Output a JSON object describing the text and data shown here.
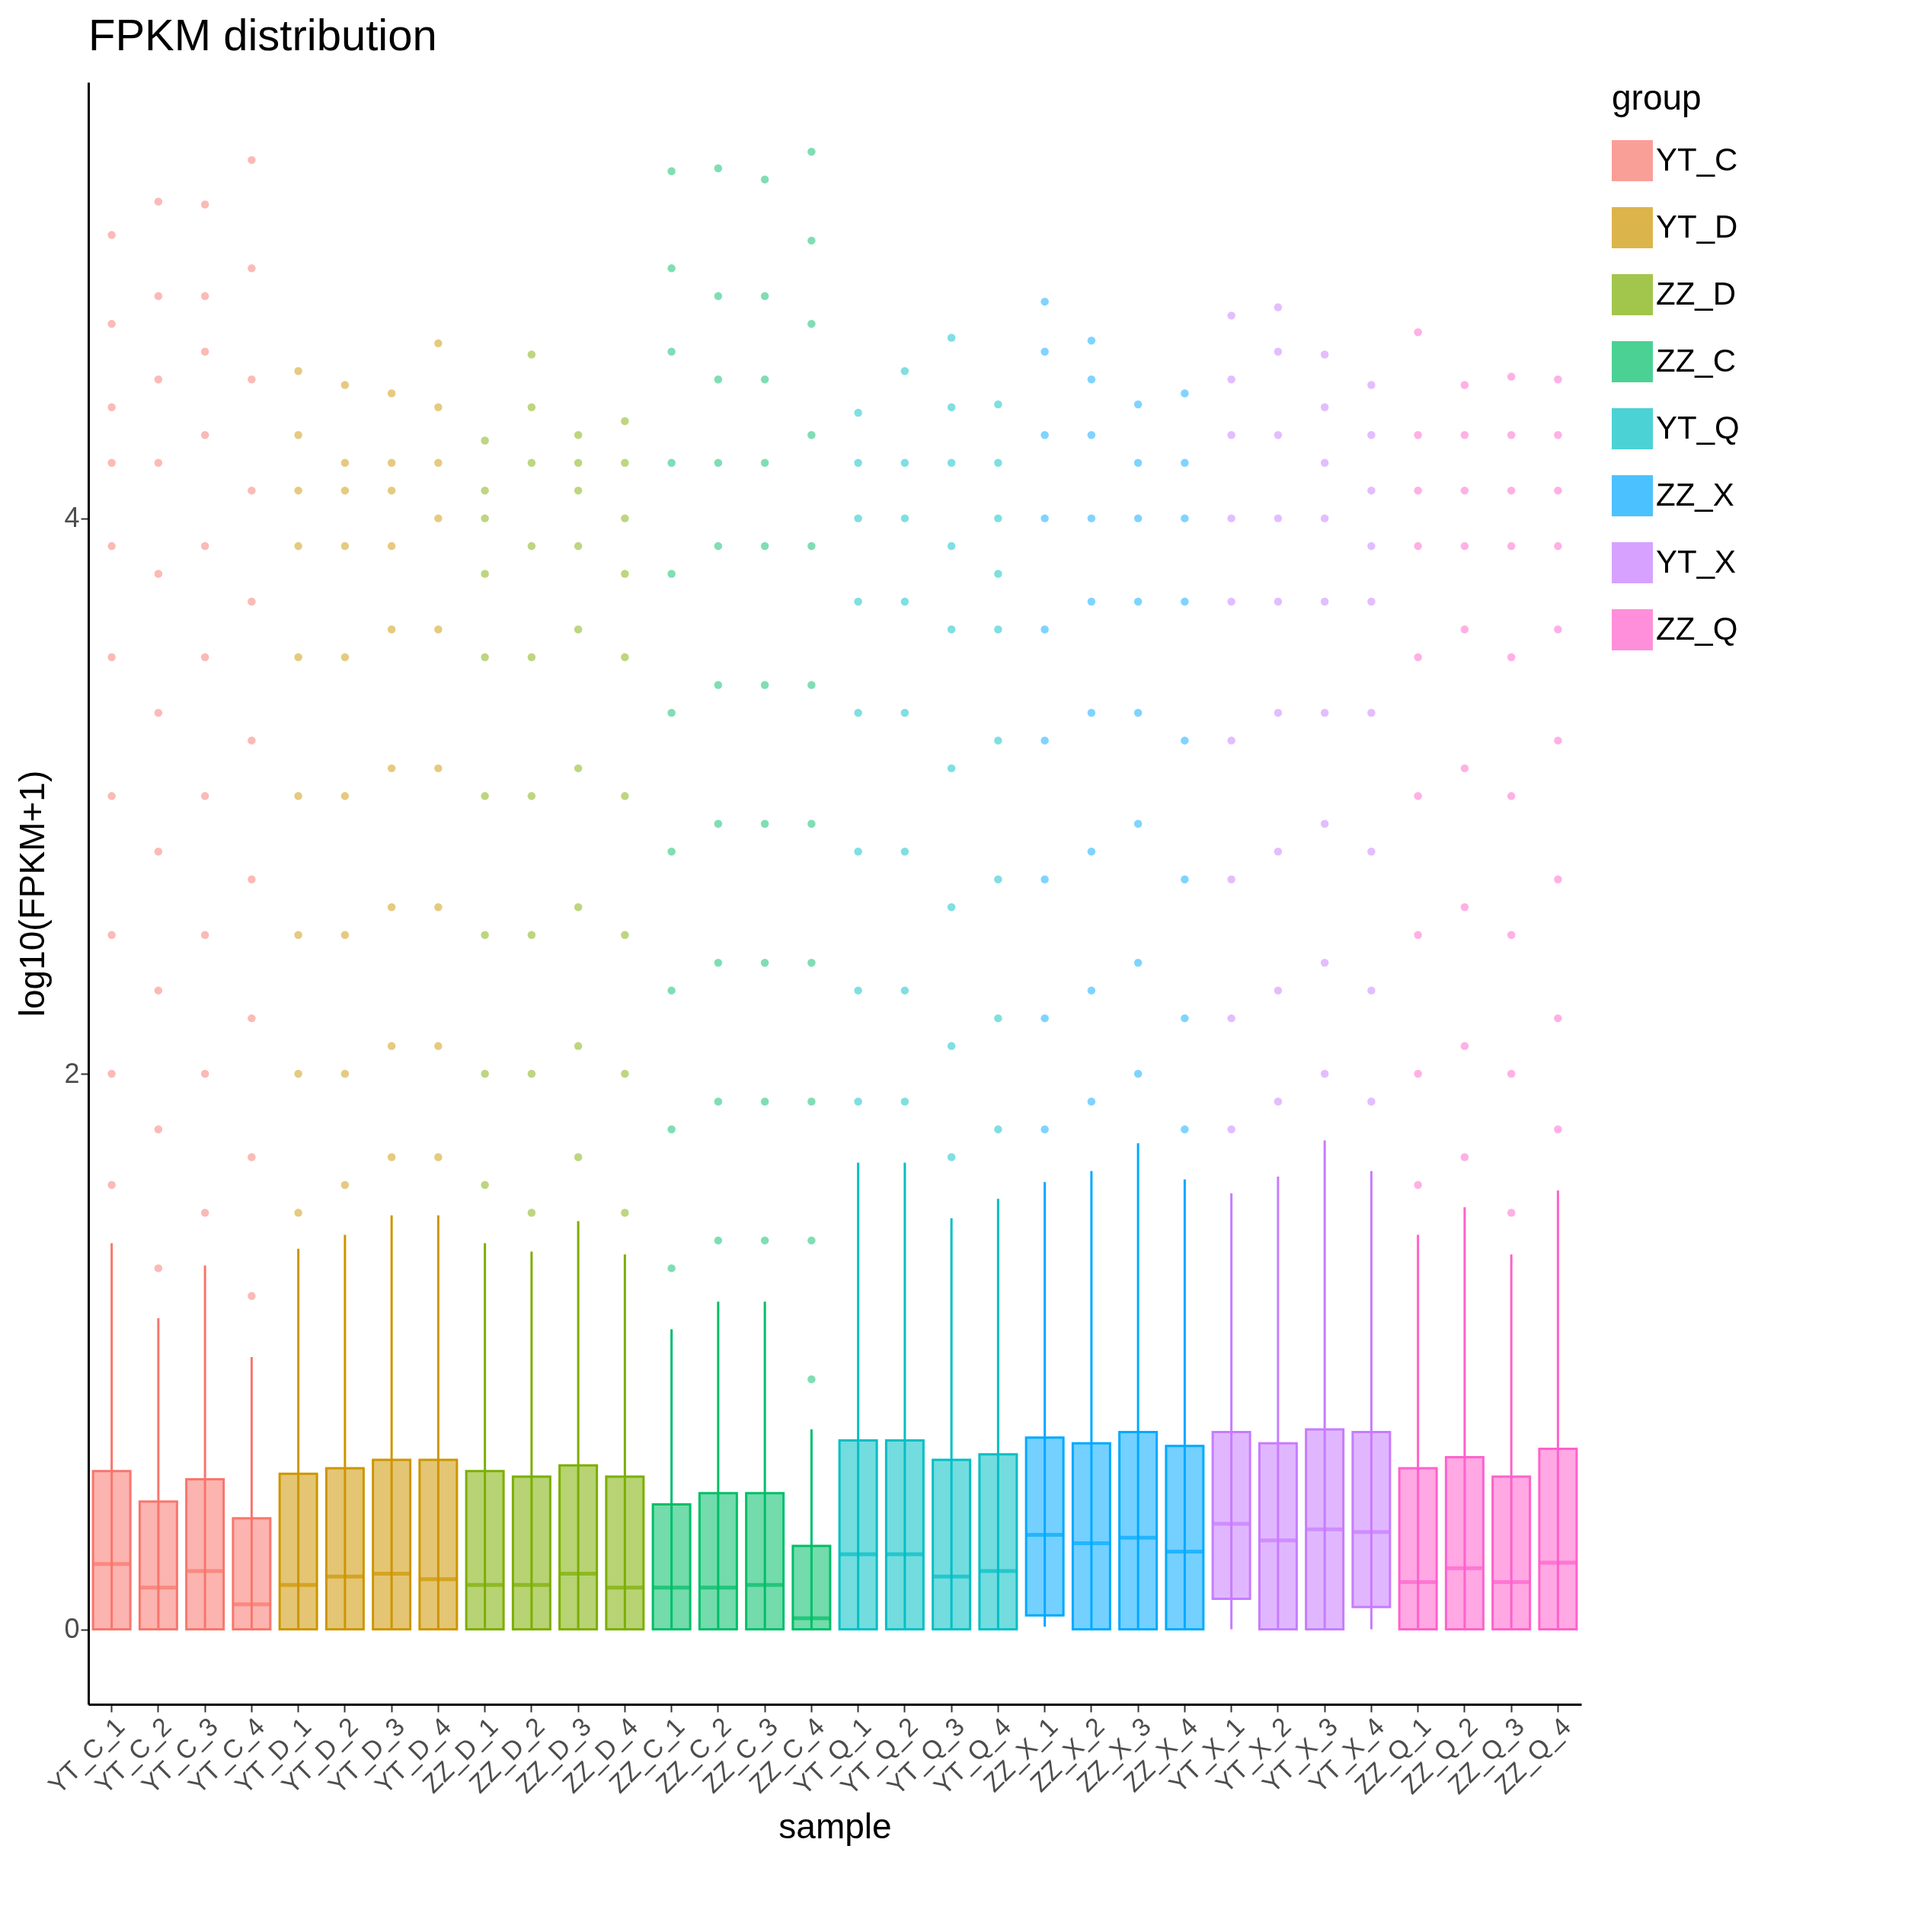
{
  "chart_data": {
    "type": "box",
    "title": "FPKM distribution",
    "xlabel": "sample",
    "ylabel": "log10(FPKM+1)",
    "legend_title": "group",
    "legend": "right",
    "grid": false,
    "marker": "circle",
    "categories": [
      "YT_C_1",
      "YT_C_2",
      "YT_C_3",
      "YT_C_4",
      "YT_D_1",
      "YT_D_2",
      "YT_D_3",
      "YT_D_4",
      "ZZ_D_1",
      "ZZ_D_2",
      "ZZ_D_3",
      "ZZ_D_4",
      "ZZ_C_1",
      "ZZ_C_2",
      "ZZ_C_3",
      "ZZ_C_4",
      "YT_Q_1",
      "YT_Q_2",
      "YT_Q_3",
      "YT_Q_4",
      "ZZ_X_1",
      "ZZ_X_2",
      "ZZ_X_3",
      "ZZ_X_4",
      "YT_X_1",
      "YT_X_2",
      "YT_X_3",
      "YT_X_4",
      "ZZ_Q_1",
      "ZZ_Q_2",
      "ZZ_Q_3",
      "ZZ_Q_4"
    ],
    "ylim": [
      -0.27,
      5.57
    ],
    "yticks": [
      0,
      2,
      4
    ],
    "series": [
      {
        "name": "YT_C",
        "color": "#f8766d",
        "boxes": [
          {
            "low": 0,
            "q1": 0,
            "median": 0.235,
            "q3": 0.57,
            "high": 1.39,
            "outliers": [
              1.6,
              2.0,
              2.5,
              3.0,
              3.5,
              3.9,
              4.2,
              4.4,
              4.7,
              5.02
            ]
          },
          {
            "low": 0,
            "q1": 0,
            "median": 0.15,
            "q3": 0.46,
            "high": 1.12,
            "outliers": [
              1.3,
              1.8,
              2.3,
              2.8,
              3.3,
              3.8,
              4.2,
              4.5,
              4.8,
              5.14
            ]
          },
          {
            "low": 0,
            "q1": 0,
            "median": 0.21,
            "q3": 0.54,
            "high": 1.31,
            "outliers": [
              1.5,
              2.0,
              2.5,
              3.0,
              3.5,
              3.9,
              4.3,
              4.6,
              4.8,
              5.13
            ]
          },
          {
            "low": 0,
            "q1": 0,
            "median": 0.09,
            "q3": 0.4,
            "high": 0.98,
            "outliers": [
              1.2,
              1.7,
              2.2,
              2.7,
              3.2,
              3.7,
              4.1,
              4.5,
              4.9,
              5.29
            ]
          },
          null,
          null,
          null,
          null,
          null,
          null,
          null,
          null,
          null,
          null,
          null,
          null,
          null,
          null,
          null,
          null,
          null,
          null,
          null,
          null,
          null,
          null,
          null,
          null,
          null,
          null,
          null,
          null
        ]
      },
      {
        "name": "YT_D",
        "color": "#cd9600",
        "boxes": [
          null,
          null,
          null,
          null,
          {
            "low": 0,
            "q1": 0,
            "median": 0.16,
            "q3": 0.56,
            "high": 1.37,
            "outliers": [
              1.5,
              2.0,
              2.5,
              3.0,
              3.5,
              3.9,
              4.1,
              4.3,
              4.53
            ]
          },
          {
            "low": 0,
            "q1": 0,
            "median": 0.19,
            "q3": 0.58,
            "high": 1.42,
            "outliers": [
              1.6,
              2.0,
              2.5,
              3.0,
              3.5,
              3.9,
              4.1,
              4.2,
              4.48
            ]
          },
          {
            "low": 0,
            "q1": 0,
            "median": 0.2,
            "q3": 0.61,
            "high": 1.49,
            "outliers": [
              1.7,
              2.1,
              2.6,
              3.1,
              3.6,
              3.9,
              4.1,
              4.2,
              4.45
            ]
          },
          {
            "low": 0,
            "q1": 0,
            "median": 0.18,
            "q3": 0.61,
            "high": 1.49,
            "outliers": [
              1.7,
              2.1,
              2.6,
              3.1,
              3.6,
              4.0,
              4.2,
              4.4,
              4.63
            ]
          },
          null,
          null,
          null,
          null,
          null,
          null,
          null,
          null,
          null,
          null,
          null,
          null,
          null,
          null,
          null,
          null,
          null,
          null,
          null,
          null,
          null,
          null,
          null,
          null
        ]
      },
      {
        "name": "ZZ_D",
        "color": "#7cae00",
        "boxes": [
          null,
          null,
          null,
          null,
          null,
          null,
          null,
          null,
          {
            "low": 0,
            "q1": 0,
            "median": 0.16,
            "q3": 0.57,
            "high": 1.39,
            "outliers": [
              1.6,
              2.0,
              2.5,
              3.0,
              3.5,
              3.8,
              4.0,
              4.1,
              4.28
            ]
          },
          {
            "low": 0,
            "q1": 0,
            "median": 0.16,
            "q3": 0.55,
            "high": 1.36,
            "outliers": [
              1.5,
              2.0,
              2.5,
              3.0,
              3.5,
              3.9,
              4.2,
              4.4,
              4.59
            ]
          },
          {
            "low": 0,
            "q1": 0,
            "median": 0.2,
            "q3": 0.59,
            "high": 1.47,
            "outliers": [
              1.7,
              2.1,
              2.6,
              3.1,
              3.6,
              3.9,
              4.1,
              4.2,
              4.3
            ]
          },
          {
            "low": 0,
            "q1": 0,
            "median": 0.15,
            "q3": 0.55,
            "high": 1.35,
            "outliers": [
              1.5,
              2.0,
              2.5,
              3.0,
              3.5,
              3.8,
              4.0,
              4.2,
              4.35
            ]
          },
          null,
          null,
          null,
          null,
          null,
          null,
          null,
          null,
          null,
          null,
          null,
          null,
          null,
          null,
          null,
          null,
          null,
          null,
          null,
          null
        ]
      },
      {
        "name": "ZZ_C",
        "color": "#00be67",
        "boxes": [
          null,
          null,
          null,
          null,
          null,
          null,
          null,
          null,
          null,
          null,
          null,
          null,
          {
            "low": 0,
            "q1": 0,
            "median": 0.15,
            "q3": 0.45,
            "high": 1.08,
            "outliers": [
              1.3,
              1.8,
              2.3,
              2.8,
              3.3,
              3.8,
              4.2,
              4.6,
              4.9,
              5.25
            ]
          },
          {
            "low": 0,
            "q1": 0,
            "median": 0.15,
            "q3": 0.49,
            "high": 1.18,
            "outliers": [
              1.4,
              1.9,
              2.4,
              2.9,
              3.4,
              3.9,
              4.2,
              4.5,
              4.8,
              5.26
            ]
          },
          {
            "low": 0,
            "q1": 0,
            "median": 0.16,
            "q3": 0.49,
            "high": 1.18,
            "outliers": [
              1.4,
              1.9,
              2.4,
              2.9,
              3.4,
              3.9,
              4.2,
              4.5,
              4.8,
              5.22
            ]
          },
          {
            "low": 0,
            "q1": 0,
            "median": 0.04,
            "q3": 0.3,
            "high": 0.72,
            "outliers": [
              0.9,
              1.4,
              1.9,
              2.4,
              2.9,
              3.4,
              3.9,
              4.3,
              4.7,
              5.0,
              5.32
            ]
          },
          null,
          null,
          null,
          null,
          null,
          null,
          null,
          null,
          null,
          null,
          null,
          null,
          null,
          null,
          null,
          null
        ]
      },
      {
        "name": "YT_Q",
        "color": "#00bfc4",
        "boxes": [
          null,
          null,
          null,
          null,
          null,
          null,
          null,
          null,
          null,
          null,
          null,
          null,
          null,
          null,
          null,
          null,
          {
            "low": 0,
            "q1": 0,
            "median": 0.27,
            "q3": 0.68,
            "high": 1.68,
            "outliers": [
              1.9,
              2.3,
              2.8,
              3.3,
              3.7,
              4.0,
              4.2,
              4.38
            ]
          },
          {
            "low": 0,
            "q1": 0,
            "median": 0.27,
            "q3": 0.68,
            "high": 1.68,
            "outliers": [
              1.9,
              2.3,
              2.8,
              3.3,
              3.7,
              4.0,
              4.2,
              4.53
            ]
          },
          {
            "low": 0,
            "q1": 0,
            "median": 0.19,
            "q3": 0.61,
            "high": 1.48,
            "outliers": [
              1.7,
              2.1,
              2.6,
              3.1,
              3.6,
              3.9,
              4.2,
              4.4,
              4.65
            ]
          },
          {
            "low": 0,
            "q1": 0,
            "median": 0.21,
            "q3": 0.63,
            "high": 1.55,
            "outliers": [
              1.8,
              2.2,
              2.7,
              3.2,
              3.6,
              3.8,
              4.0,
              4.2,
              4.41
            ]
          },
          null,
          null,
          null,
          null,
          null,
          null,
          null,
          null,
          null,
          null,
          null,
          null
        ]
      },
      {
        "name": "ZZ_X",
        "color": "#00a9ff",
        "boxes": [
          null,
          null,
          null,
          null,
          null,
          null,
          null,
          null,
          null,
          null,
          null,
          null,
          null,
          null,
          null,
          null,
          null,
          null,
          null,
          null,
          {
            "low": 0.01,
            "q1": 0.05,
            "median": 0.34,
            "q3": 0.69,
            "high": 1.61,
            "outliers": [
              1.8,
              2.2,
              2.7,
              3.2,
              3.6,
              4.0,
              4.3,
              4.6,
              4.78
            ]
          },
          {
            "low": 0,
            "q1": 0,
            "median": 0.31,
            "q3": 0.67,
            "high": 1.65,
            "outliers": [
              1.9,
              2.3,
              2.8,
              3.3,
              3.7,
              4.0,
              4.3,
              4.5,
              4.64
            ]
          },
          {
            "low": 0,
            "q1": 0,
            "median": 0.33,
            "q3": 0.71,
            "high": 1.75,
            "outliers": [
              2.0,
              2.4,
              2.9,
              3.3,
              3.7,
              4.0,
              4.2,
              4.41
            ]
          },
          {
            "low": 0,
            "q1": 0,
            "median": 0.28,
            "q3": 0.66,
            "high": 1.62,
            "outliers": [
              1.8,
              2.2,
              2.7,
              3.2,
              3.7,
              4.0,
              4.2,
              4.45
            ]
          },
          null,
          null,
          null,
          null,
          null,
          null,
          null,
          null
        ]
      },
      {
        "name": "YT_X",
        "color": "#c77cff",
        "boxes": [
          null,
          null,
          null,
          null,
          null,
          null,
          null,
          null,
          null,
          null,
          null,
          null,
          null,
          null,
          null,
          null,
          null,
          null,
          null,
          null,
          null,
          null,
          null,
          null,
          {
            "low": 0,
            "q1": 0.11,
            "median": 0.38,
            "q3": 0.71,
            "high": 1.57,
            "outliers": [
              1.8,
              2.2,
              2.7,
              3.2,
              3.7,
              4.0,
              4.3,
              4.5,
              4.73
            ]
          },
          {
            "low": 0,
            "q1": 0,
            "median": 0.32,
            "q3": 0.67,
            "high": 1.63,
            "outliers": [
              1.9,
              2.3,
              2.8,
              3.3,
              3.7,
              4.0,
              4.3,
              4.6,
              4.76
            ]
          },
          {
            "low": 0,
            "q1": 0,
            "median": 0.36,
            "q3": 0.72,
            "high": 1.76,
            "outliers": [
              2.0,
              2.4,
              2.9,
              3.3,
              3.7,
              4.0,
              4.2,
              4.4,
              4.59
            ]
          },
          {
            "low": 0,
            "q1": 0.08,
            "median": 0.35,
            "q3": 0.71,
            "high": 1.65,
            "outliers": [
              1.9,
              2.3,
              2.8,
              3.3,
              3.7,
              3.9,
              4.1,
              4.3,
              4.48
            ]
          },
          null,
          null,
          null,
          null
        ]
      },
      {
        "name": "ZZ_Q",
        "color": "#ff61cc",
        "boxes": [
          null,
          null,
          null,
          null,
          null,
          null,
          null,
          null,
          null,
          null,
          null,
          null,
          null,
          null,
          null,
          null,
          null,
          null,
          null,
          null,
          null,
          null,
          null,
          null,
          null,
          null,
          null,
          null,
          {
            "low": 0,
            "q1": 0,
            "median": 0.17,
            "q3": 0.58,
            "high": 1.42,
            "outliers": [
              1.6,
              2.0,
              2.5,
              3.0,
              3.5,
              3.9,
              4.1,
              4.3,
              4.67
            ]
          },
          {
            "low": 0,
            "q1": 0,
            "median": 0.22,
            "q3": 0.62,
            "high": 1.52,
            "outliers": [
              1.7,
              2.1,
              2.6,
              3.1,
              3.6,
              3.9,
              4.1,
              4.3,
              4.48
            ]
          },
          {
            "low": 0,
            "q1": 0,
            "median": 0.17,
            "q3": 0.55,
            "high": 1.35,
            "outliers": [
              1.5,
              2.0,
              2.5,
              3.0,
              3.5,
              3.9,
              4.1,
              4.3,
              4.51
            ]
          },
          {
            "low": 0,
            "q1": 0,
            "median": 0.24,
            "q3": 0.65,
            "high": 1.58,
            "outliers": [
              1.8,
              2.2,
              2.7,
              3.2,
              3.6,
              3.9,
              4.1,
              4.3,
              4.5
            ]
          }
        ]
      }
    ]
  }
}
